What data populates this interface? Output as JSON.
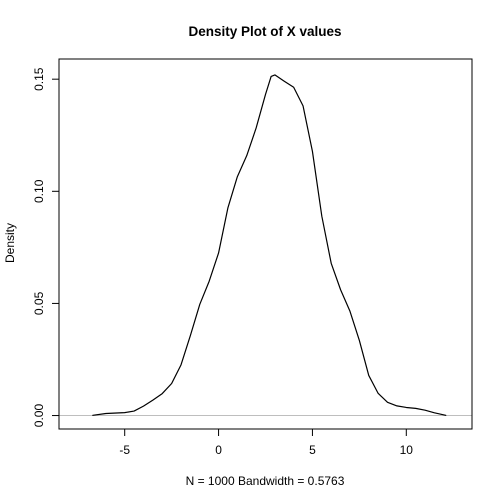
{
  "chart_data": {
    "type": "line",
    "title": "Density Plot of X values",
    "xlabel": "N = 1000   Bandwidth = 0.5763",
    "ylabel": "Density",
    "xlim": [
      -8.5,
      13.5
    ],
    "ylim": [
      -0.006,
      0.159
    ],
    "x_ticks": [
      "-5",
      "0",
      "5",
      "10"
    ],
    "y_ticks": [
      "0.00",
      "0.05",
      "0.10",
      "0.15"
    ],
    "grid": false,
    "baseline_color": "#bebebe",
    "line_color": "#000000",
    "series": [
      {
        "x": [
          -6.7,
          -6.0,
          -5.0,
          -4.5,
          -4.0,
          -3.5,
          -3.0,
          -2.5,
          -2.0,
          -1.5,
          -1.0,
          -0.5,
          0.0,
          0.5,
          1.0,
          1.5,
          2.0,
          2.5,
          2.8,
          3.0,
          3.5,
          4.0,
          4.5,
          5.0,
          5.5,
          6.0,
          6.5,
          7.0,
          7.5,
          8.0,
          8.5,
          9.0,
          9.5,
          10.0,
          10.5,
          11.0,
          11.5,
          12.1
        ],
        "values": [
          0.0001,
          0.0009,
          0.0013,
          0.002,
          0.0042,
          0.0069,
          0.0098,
          0.0143,
          0.0226,
          0.0357,
          0.0496,
          0.0599,
          0.0725,
          0.0927,
          0.1065,
          0.1159,
          0.1282,
          0.1432,
          0.1512,
          0.1519,
          0.1491,
          0.1464,
          0.1381,
          0.1178,
          0.0889,
          0.0679,
          0.0561,
          0.0465,
          0.0335,
          0.0179,
          0.0099,
          0.0059,
          0.0043,
          0.0036,
          0.0032,
          0.0024,
          0.0012,
          0.0001
        ]
      }
    ]
  }
}
